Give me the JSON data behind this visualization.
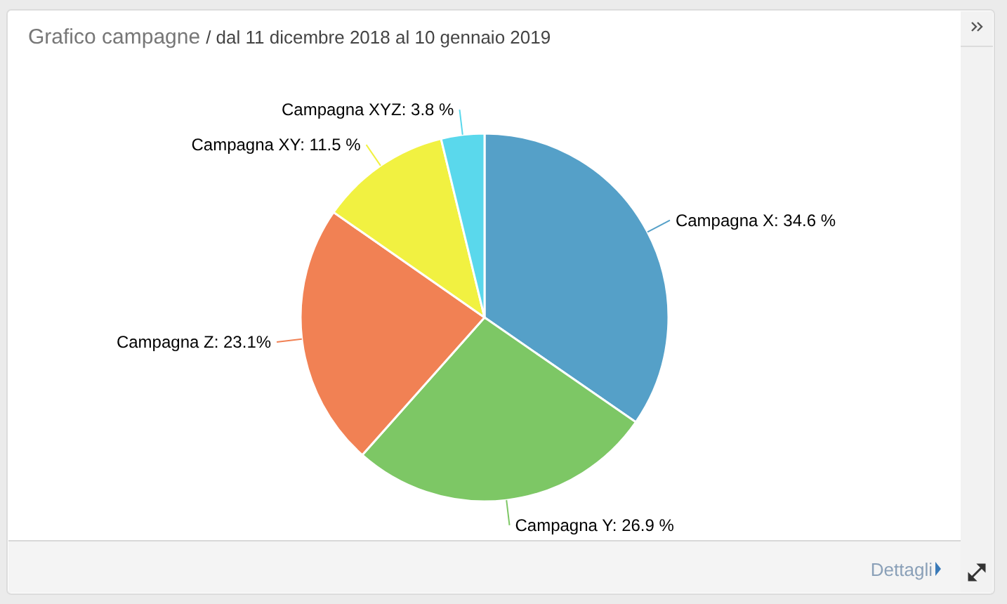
{
  "chart_data": {
    "type": "pie",
    "title": "Grafico campagne",
    "subtitle": "/ dal 11 dicembre 2018 al 10 gennaio 2019",
    "categories": [
      "Campagna X",
      "Campagna Y",
      "Campagna Z",
      "Campagna XY",
      "Campagna XYZ"
    ],
    "values": [
      34.6,
      26.9,
      23.1,
      11.5,
      3.8
    ],
    "value_labels": [
      "34.6 %",
      "26.9 %",
      "23.1%",
      "11.5 %",
      "3.8 %"
    ],
    "colors": [
      "#55a0c8",
      "#7dc765",
      "#f18154",
      "#f1f141",
      "#5ad8ec"
    ],
    "annotations": [
      "Dettagli"
    ]
  }
}
